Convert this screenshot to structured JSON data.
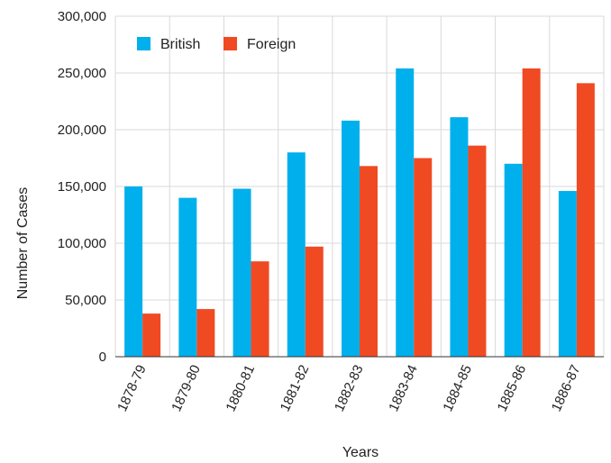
{
  "chart_data": {
    "type": "bar",
    "title": "",
    "xlabel": "Years",
    "ylabel": "Number of Cases",
    "categories": [
      "1878-79",
      "1879-80",
      "1880-81",
      "1881-82",
      "1882-83",
      "1883-84",
      "1884-85",
      "1885-86",
      "1886-87"
    ],
    "series": [
      {
        "name": "British",
        "color": "#00b0ec",
        "values": [
          150000,
          140000,
          148000,
          180000,
          208000,
          254000,
          211000,
          170000,
          146000
        ]
      },
      {
        "name": "Foreign",
        "color": "#f04a23",
        "values": [
          38000,
          42000,
          84000,
          97000,
          168000,
          175000,
          186000,
          254000,
          241000
        ]
      }
    ],
    "ylim": [
      0,
      300000
    ],
    "yticks": [
      0,
      50000,
      100000,
      150000,
      200000,
      250000,
      300000
    ],
    "ytick_labels": [
      "0",
      "50,000",
      "100,000",
      "150,000",
      "200,000",
      "250,000",
      "300,000"
    ],
    "grid": true,
    "legend_position": "top-left"
  }
}
